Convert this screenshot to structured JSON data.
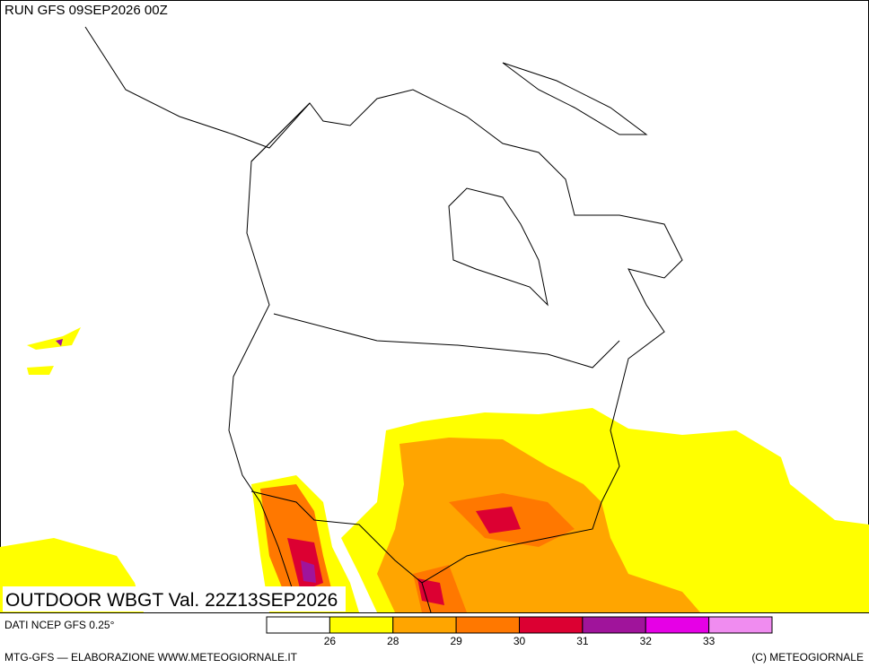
{
  "header": {
    "run": "RUN GFS 09SEP2026 00Z"
  },
  "map": {
    "caption": "OUTDOOR WBGT Val. 22Z13SEP2026"
  },
  "legend": {
    "source": "DATI NCEP GFS 0.25°",
    "colors": [
      "#ffffff",
      "#ffff00",
      "#ffa500",
      "#ff7800",
      "#dc0032",
      "#a0149b",
      "#e600e6",
      "#f08cf0"
    ],
    "labels": [
      "26",
      "28",
      "29",
      "30",
      "31",
      "32",
      "33"
    ]
  },
  "footer": {
    "left": "MTG-GFS — ELABORAZIONE WWW.METEOGIORNALE.IT",
    "right": "(C) METEOGIORNALE"
  }
}
